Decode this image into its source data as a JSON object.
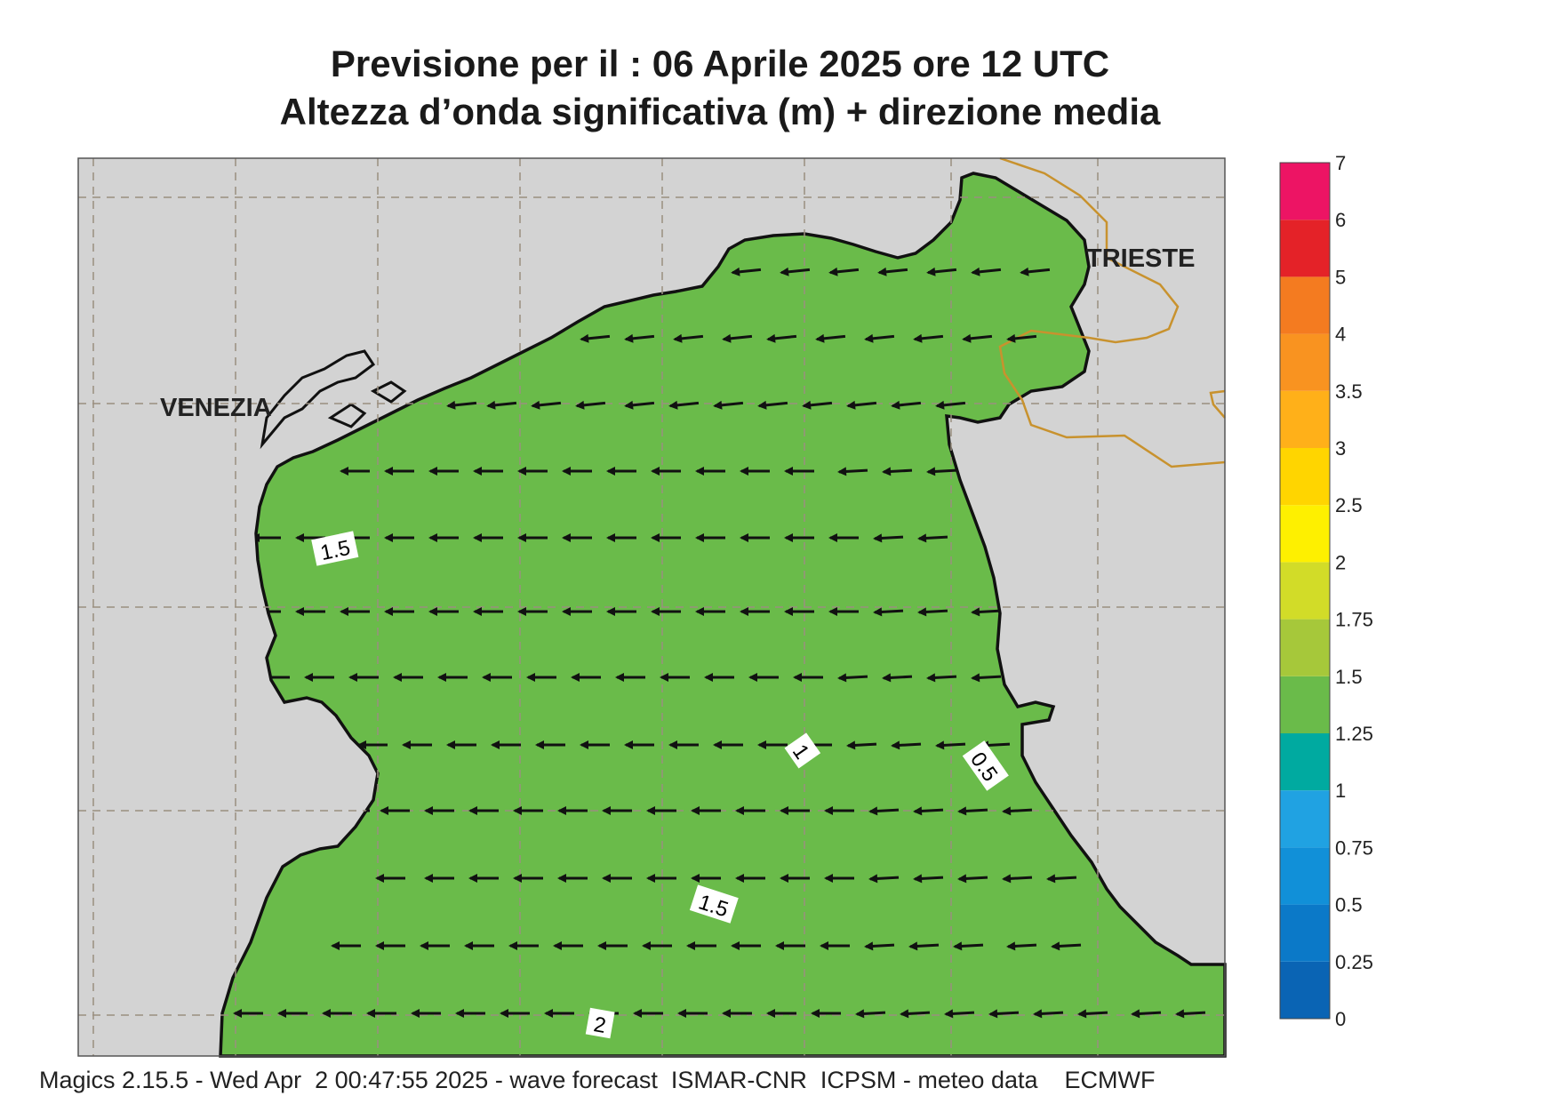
{
  "header": {
    "title_line1": "Previsione per il  :  06   Aprile  2025   ore 12 UTC",
    "title_line2": "Altezza d’onda significativa (m) + direzione media"
  },
  "map": {
    "cities": [
      {
        "name": "VENEZIA"
      },
      {
        "name": "TRIESTE"
      }
    ],
    "contour_labels": [
      "1.5",
      "1",
      "0.5",
      "1.5",
      "2"
    ],
    "wave_direction": "toward west",
    "colors": {
      "land": "#d3d3d3",
      "coast": "#111111",
      "border": "#c8922e",
      "grid": "#9a8f80"
    }
  },
  "legend": {
    "levels": [
      "0",
      "0.25",
      "0.5",
      "0.75",
      "1",
      "1.25",
      "1.5",
      "1.75",
      "2",
      "2.5",
      "3",
      "3.5",
      "4",
      "5",
      "6",
      "7"
    ],
    "colors": [
      "#0a64b4",
      "#0b79c8",
      "#1190d8",
      "#20a2e2",
      "#00aaa0",
      "#6abb4a",
      "#a6c83a",
      "#d2dc28",
      "#fef000",
      "#ffd500",
      "#ffb019",
      "#f99320",
      "#f47b20",
      "#e42228",
      "#ed1464"
    ]
  },
  "footer": {
    "text": "Magics 2.15.5 - Wed Apr  2 00:47:55 2025 - wave forecast  ISMAR-CNR  ICPSM - meteo data    ECMWF"
  }
}
